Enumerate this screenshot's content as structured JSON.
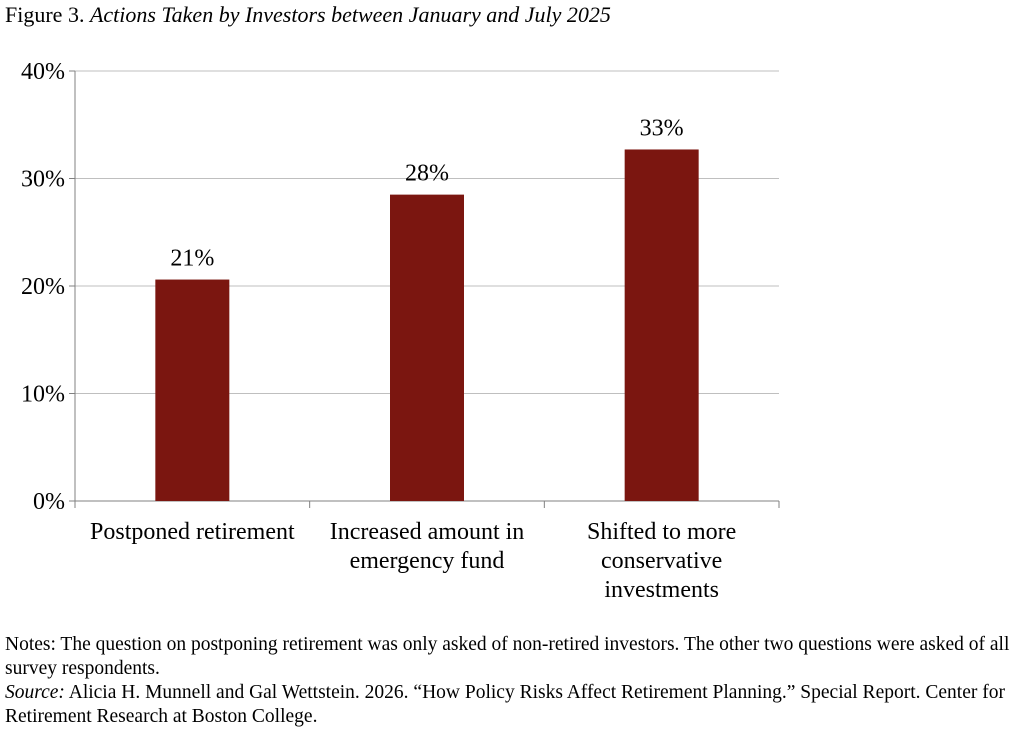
{
  "figure": {
    "label": "Figure 3.",
    "title": "Actions Taken by Investors between January and July 2025"
  },
  "chart_data": {
    "type": "bar",
    "categories": [
      "Postponed retirement",
      "Increased amount in emergency fund",
      "Shifted to more conservative investments"
    ],
    "category_label_lines": [
      [
        "Postponed retirement"
      ],
      [
        "Increased amount in",
        "emergency fund"
      ],
      [
        "Shifted to more",
        "conservative",
        "investments"
      ]
    ],
    "values": [
      20.6,
      28.5,
      32.7
    ],
    "data_labels": [
      "21%",
      "28%",
      "33%"
    ],
    "ylim": [
      0,
      40
    ],
    "yticks": [
      0,
      10,
      20,
      30,
      40
    ],
    "ytick_labels": [
      "0%",
      "10%",
      "20%",
      "30%",
      "40%"
    ],
    "xlabel": "",
    "ylabel": "",
    "grid": true,
    "legend": "none",
    "bar_color": "#7B1610",
    "grid_color": "#BFBFBF"
  },
  "notes": {
    "text": "Notes: The question on postponing retirement was only asked of non-retired investors. The other two questions were asked of all survey respondents.",
    "source_label": "Source:",
    "source_text": "Alicia H. Munnell and Gal Wettstein. 2026. “How Policy Risks Affect Retirement Planning.” Special Report. Center for Retirement Research at Boston College."
  }
}
